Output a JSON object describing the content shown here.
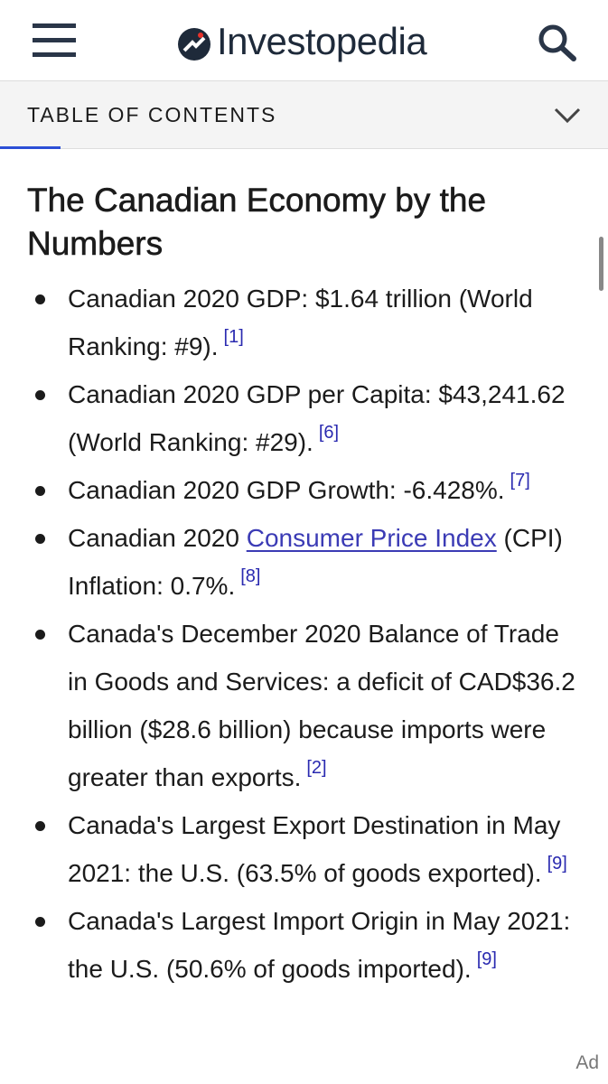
{
  "header": {
    "brand": "Investopedia"
  },
  "toc": {
    "label": "TABLE OF CONTENTS"
  },
  "article": {
    "heading": "The Canadian Economy by the Numbers",
    "items": [
      {
        "text": "Canadian 2020 GDP: $1.64 trillion (World Ranking: #9).",
        "ref": "[1]"
      },
      {
        "text": "Canadian 2020 GDP per Capita: $43,241.62 (World Ranking: #29).",
        "ref": "[6]"
      },
      {
        "text": "Canadian 2020 GDP Growth: -6.428%.",
        "ref": "[7]"
      },
      {
        "text": "Canadian 2020 ",
        "link": "Consumer Price Index",
        "after": " (CPI) Inflation: 0.7%.",
        "ref": "[8]"
      },
      {
        "text": "Canada's December 2020 Balance of Trade in Goods and Services: a deficit of CAD$36.2 billion ($28.6 billion) because imports were greater than exports.",
        "ref": "[2]"
      },
      {
        "text": "Canada's Largest Export Destination in May 2021: the U.S. (63.5% of goods exported).",
        "ref": "[9]"
      },
      {
        "text": "Canada's Largest Import Origin in May 2021: the U.S. (50.6% of goods imported).",
        "ref": "[9]"
      }
    ]
  },
  "ad": "Ad"
}
